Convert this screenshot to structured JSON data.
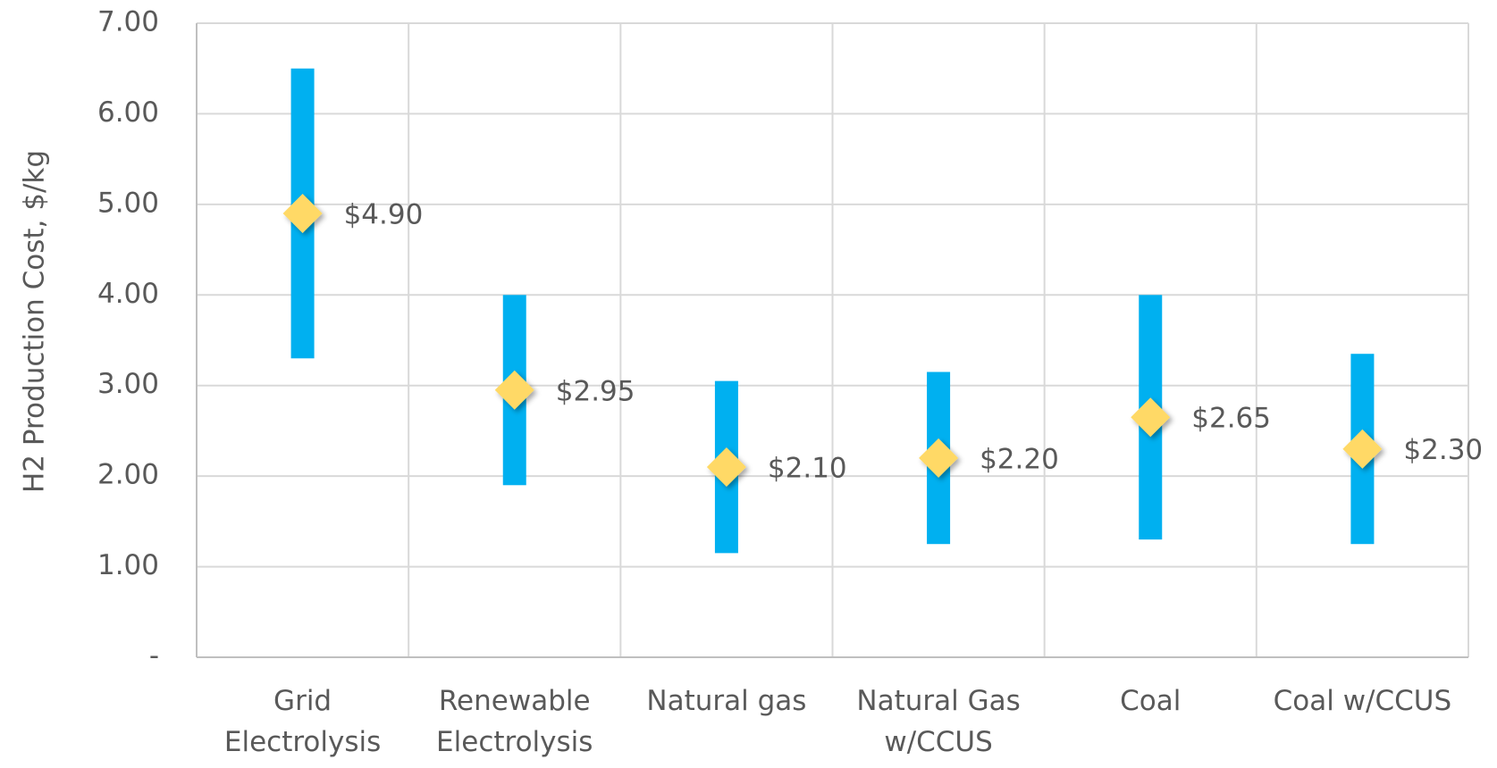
{
  "chart_data": {
    "type": "range",
    "y_label": "H2 Production Cost, $/kg",
    "categories": [
      "Grid\nElectrolysis",
      "Renewable\nElectrolysis",
      "Natural gas",
      "Natural Gas\nw/CCUS",
      "Coal",
      "Coal w/CCUS"
    ],
    "low": [
      3.3,
      1.9,
      1.15,
      1.25,
      1.3,
      1.25
    ],
    "high": [
      6.5,
      4.0,
      3.05,
      3.15,
      4.0,
      3.35
    ],
    "values": [
      4.9,
      2.95,
      2.1,
      2.2,
      2.65,
      2.3
    ],
    "value_labels": [
      "$4.90",
      "$2.95",
      "$2.10",
      "$2.20",
      "$2.65",
      "$2.30"
    ],
    "bar_color": "#00b0f0",
    "marker_color": "#ffd966",
    "ylim": [
      0,
      7
    ],
    "yticks": [
      {
        "value": 0,
        "label": "-"
      },
      {
        "value": 1,
        "label": "1.00"
      },
      {
        "value": 2,
        "label": "2.00"
      },
      {
        "value": 3,
        "label": "3.00"
      },
      {
        "value": 4,
        "label": "4.00"
      },
      {
        "value": 5,
        "label": "5.00"
      },
      {
        "value": 6,
        "label": "6.00"
      },
      {
        "value": 7,
        "label": "7.00"
      }
    ],
    "grid": true
  }
}
